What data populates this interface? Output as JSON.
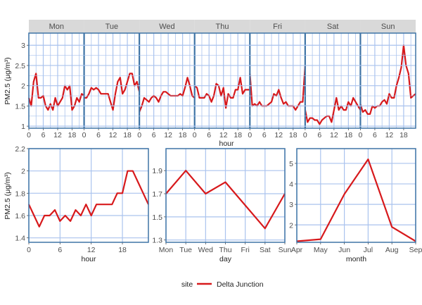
{
  "colors": {
    "line": "#d7191c",
    "grid": "#aac3ee",
    "frame": "#3f74a6",
    "strip": "#d9d9d9",
    "text": "#4d4d4d"
  },
  "legend": {
    "title": "site",
    "entries": [
      "Delta Junction"
    ],
    "placement": "bottom"
  },
  "chart_data": [
    {
      "type": "line",
      "panel": "weekday-hour",
      "ylabel": "PM2.5 (μg/m³)",
      "xlabel": "hour",
      "ylim": [
        0.95,
        3.3
      ],
      "yticks": [
        1.0,
        1.5,
        2.0,
        2.5,
        3.0
      ],
      "xticks": [
        0,
        6,
        12,
        18
      ],
      "grid": true,
      "facets": [
        {
          "label": "Mon",
          "values": [
            1.7,
            1.5,
            2.1,
            2.3,
            1.7,
            1.7,
            1.75,
            1.5,
            1.4,
            1.55,
            1.4,
            1.7,
            1.5,
            1.6,
            1.7,
            2.0,
            1.9,
            2.0,
            1.4,
            1.5,
            1.7,
            1.6,
            1.8,
            1.75
          ]
        },
        {
          "label": "Tue",
          "values": [
            1.7,
            1.7,
            1.8,
            1.95,
            1.9,
            1.95,
            1.9,
            1.8,
            1.8,
            1.8,
            1.8,
            1.6,
            1.4,
            1.8,
            2.1,
            2.2,
            1.8,
            1.9,
            2.1,
            2.3,
            2.3,
            2.0,
            2.1,
            1.85
          ]
        },
        {
          "label": "Wed",
          "values": [
            1.35,
            1.5,
            1.7,
            1.65,
            1.6,
            1.7,
            1.75,
            1.7,
            1.6,
            1.75,
            1.85,
            1.85,
            1.8,
            1.75,
            1.75,
            1.75,
            1.75,
            1.8,
            1.75,
            1.95,
            2.2,
            2.0,
            1.75,
            1.7
          ]
        },
        {
          "label": "Thu",
          "values": [
            2.0,
            1.95,
            1.7,
            1.7,
            1.7,
            1.8,
            1.75,
            1.6,
            1.75,
            2.05,
            2.0,
            1.75,
            1.95,
            1.45,
            1.8,
            1.7,
            1.7,
            1.9,
            1.9,
            2.2,
            1.8,
            1.9,
            1.9,
            1.9
          ]
        },
        {
          "label": "Fri",
          "values": [
            2.3,
            1.5,
            1.55,
            1.5,
            1.6,
            1.5,
            1.5,
            1.5,
            1.55,
            1.6,
            1.8,
            1.75,
            1.9,
            1.7,
            1.55,
            1.6,
            1.5,
            1.5,
            1.5,
            1.4,
            1.5,
            1.6,
            1.6,
            2.5
          ]
        },
        {
          "label": "Sat",
          "values": [
            1.4,
            1.1,
            1.2,
            1.2,
            1.15,
            1.15,
            1.05,
            1.15,
            1.2,
            1.25,
            1.25,
            1.1,
            1.4,
            1.7,
            1.4,
            1.5,
            1.4,
            1.4,
            1.6,
            1.5,
            1.7,
            1.6,
            1.5,
            1.4
          ]
        },
        {
          "label": "Sun",
          "values": [
            1.55,
            1.35,
            1.4,
            1.3,
            1.3,
            1.5,
            1.45,
            1.5,
            1.5,
            1.6,
            1.65,
            1.55,
            1.8,
            1.7,
            1.7,
            2.0,
            2.2,
            2.45,
            3.0,
            2.5,
            2.3,
            1.7,
            1.75,
            1.8
          ]
        }
      ]
    },
    {
      "type": "line",
      "panel": "hour",
      "ylabel": "PM2.5 (μg/m³)",
      "xlabel": "hour",
      "x": [
        0,
        1,
        2,
        3,
        4,
        5,
        6,
        7,
        8,
        9,
        10,
        11,
        12,
        13,
        14,
        15,
        16,
        17,
        18,
        19,
        20,
        21,
        22,
        23
      ],
      "values": [
        1.7,
        1.6,
        1.5,
        1.6,
        1.6,
        1.65,
        1.55,
        1.6,
        1.55,
        1.65,
        1.6,
        1.7,
        1.6,
        1.7,
        1.7,
        1.7,
        1.7,
        1.8,
        1.8,
        2.0,
        2.0,
        1.9,
        1.8,
        1.7
      ],
      "xlim": [
        0,
        23
      ],
      "ylim": [
        1.36,
        2.2
      ],
      "xticks": [
        0,
        6,
        12,
        18
      ],
      "yticks": [
        1.4,
        1.6,
        1.8,
        2.0,
        2.2
      ],
      "grid": true
    },
    {
      "type": "line",
      "panel": "day",
      "xlabel": "day",
      "categories": [
        "Mon",
        "Tue",
        "Wed",
        "Thu",
        "Fri",
        "Sat",
        "Sun"
      ],
      "values": [
        1.7,
        1.9,
        1.7,
        1.8,
        1.6,
        1.4,
        1.7
      ],
      "ylim": [
        1.28,
        2.09
      ],
      "yticks": [
        1.3,
        1.5,
        1.7,
        1.9
      ],
      "grid": true
    },
    {
      "type": "line",
      "panel": "month",
      "xlabel": "month",
      "categories": [
        "Apr",
        "May",
        "Jun",
        "Jul",
        "Aug",
        "Sep"
      ],
      "values": [
        1.2,
        1.3,
        3.5,
        5.2,
        1.9,
        1.2
      ],
      "ylim": [
        1.15,
        5.72
      ],
      "yticks": [
        2,
        3,
        4,
        5
      ],
      "grid": true
    }
  ]
}
